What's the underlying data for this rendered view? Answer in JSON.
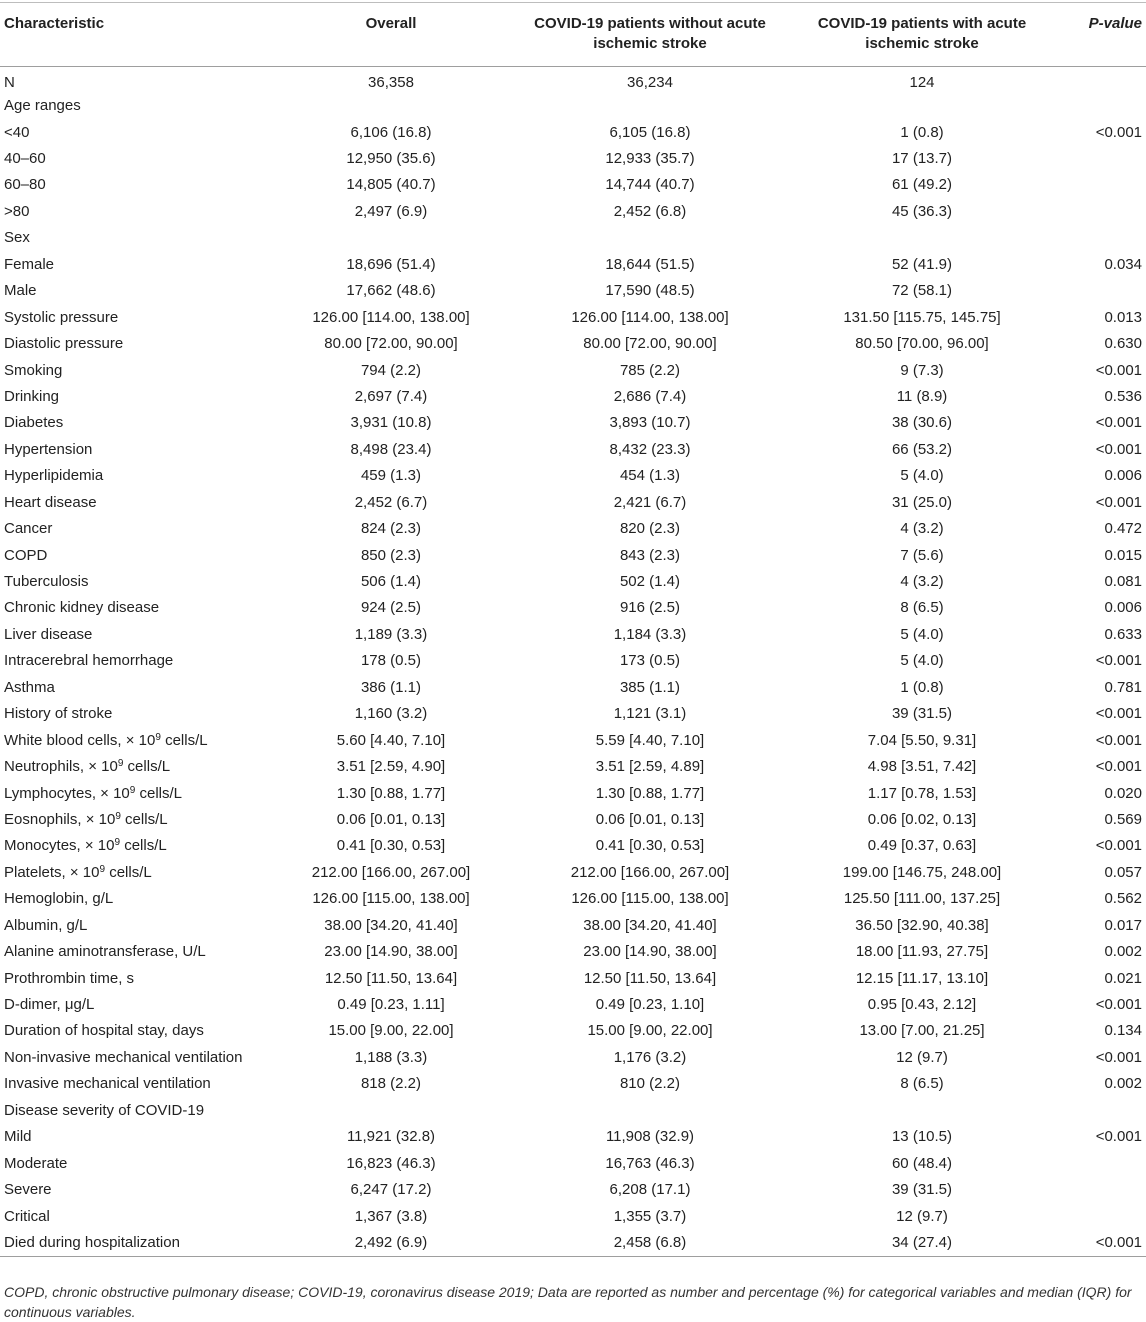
{
  "headers": {
    "characteristic": "Characteristic",
    "overall": "Overall",
    "without": "COVID-19 patients without acute ischemic stroke",
    "with": "COVID-19 patients with acute ischemic stroke",
    "pvalue": "P-value"
  },
  "rows": [
    {
      "label": "N",
      "overall": "36,358",
      "without": "36,234",
      "with": "124",
      "p": ""
    },
    {
      "label": "Age ranges",
      "overall": "",
      "without": "",
      "with": "",
      "p": ""
    },
    {
      "label": "<40",
      "overall": "6,106 (16.8)",
      "without": "6,105 (16.8)",
      "with": "1 (0.8)",
      "p": "<0.001"
    },
    {
      "label": "40–60",
      "overall": "12,950 (35.6)",
      "without": "12,933 (35.7)",
      "with": "17 (13.7)",
      "p": ""
    },
    {
      "label": "60–80",
      "overall": "14,805 (40.7)",
      "without": "14,744 (40.7)",
      "with": "61 (49.2)",
      "p": ""
    },
    {
      "label": ">80",
      "overall": "2,497 (6.9)",
      "without": "2,452 (6.8)",
      "with": "45 (36.3)",
      "p": ""
    },
    {
      "label": "Sex",
      "overall": "",
      "without": "",
      "with": "",
      "p": ""
    },
    {
      "label": "Female",
      "overall": "18,696 (51.4)",
      "without": "18,644 (51.5)",
      "with": "52 (41.9)",
      "p": "0.034"
    },
    {
      "label": "Male",
      "overall": "17,662 (48.6)",
      "without": "17,590 (48.5)",
      "with": "72 (58.1)",
      "p": ""
    },
    {
      "label": "Systolic pressure",
      "overall": "126.00 [114.00, 138.00]",
      "without": "126.00 [114.00, 138.00]",
      "with": "131.50 [115.75, 145.75]",
      "p": "0.013"
    },
    {
      "label": "Diastolic pressure",
      "overall": "80.00 [72.00, 90.00]",
      "without": "80.00 [72.00, 90.00]",
      "with": "80.50 [70.00, 96.00]",
      "p": "0.630"
    },
    {
      "label": "Smoking",
      "overall": "794 (2.2)",
      "without": "785 (2.2)",
      "with": "9 (7.3)",
      "p": "<0.001"
    },
    {
      "label": "Drinking",
      "overall": "2,697 (7.4)",
      "without": "2,686 (7.4)",
      "with": "11 (8.9)",
      "p": "0.536"
    },
    {
      "label": "Diabetes",
      "overall": "3,931 (10.8)",
      "without": "3,893 (10.7)",
      "with": "38 (30.6)",
      "p": "<0.001"
    },
    {
      "label": "Hypertension",
      "overall": "8,498 (23.4)",
      "without": "8,432 (23.3)",
      "with": "66 (53.2)",
      "p": "<0.001"
    },
    {
      "label": "Hyperlipidemia",
      "overall": "459 (1.3)",
      "without": "454 (1.3)",
      "with": "5 (4.0)",
      "p": "0.006"
    },
    {
      "label": "Heart disease",
      "overall": "2,452 (6.7)",
      "without": "2,421 (6.7)",
      "with": "31 (25.0)",
      "p": "<0.001"
    },
    {
      "label": "Cancer",
      "overall": "824 (2.3)",
      "without": "820 (2.3)",
      "with": "4 (3.2)",
      "p": "0.472"
    },
    {
      "label": "COPD",
      "overall": "850 (2.3)",
      "without": "843 (2.3)",
      "with": "7 (5.6)",
      "p": "0.015"
    },
    {
      "label": "Tuberculosis",
      "overall": "506 (1.4)",
      "without": "502 (1.4)",
      "with": "4 (3.2)",
      "p": "0.081"
    },
    {
      "label": "Chronic kidney disease",
      "overall": "924 (2.5)",
      "without": "916 (2.5)",
      "with": "8 (6.5)",
      "p": "0.006"
    },
    {
      "label": "Liver disease",
      "overall": "1,189 (3.3)",
      "without": "1,184 (3.3)",
      "with": "5 (4.0)",
      "p": "0.633"
    },
    {
      "label": "Intracerebral hemorrhage",
      "overall": "178 (0.5)",
      "without": "173 (0.5)",
      "with": "5 (4.0)",
      "p": "<0.001"
    },
    {
      "label": "Asthma",
      "overall": "386 (1.1)",
      "without": "385 (1.1)",
      "with": "1 (0.8)",
      "p": "0.781"
    },
    {
      "label": "History of stroke",
      "overall": "1,160 (3.2)",
      "without": "1,121 (3.1)",
      "with": "39 (31.5)",
      "p": "<0.001"
    },
    {
      "label_pre": "White blood cells, × 10",
      "label_sup": "9",
      "label_post": " cells/L",
      "overall": "5.60 [4.40, 7.10]",
      "without": "5.59 [4.40, 7.10]",
      "with": "7.04 [5.50, 9.31]",
      "p": "<0.001"
    },
    {
      "label_pre": "Neutrophils, × 10",
      "label_sup": "9",
      "label_post": " cells/L",
      "overall": "3.51 [2.59, 4.90]",
      "without": "3.51 [2.59, 4.89]",
      "with": "4.98 [3.51, 7.42]",
      "p": "<0.001"
    },
    {
      "label_pre": "Lymphocytes, × 10",
      "label_sup": "9",
      "label_post": " cells/L",
      "overall": "1.30 [0.88, 1.77]",
      "without": "1.30 [0.88, 1.77]",
      "with": "1.17 [0.78, 1.53]",
      "p": "0.020"
    },
    {
      "label_pre": "Eosnophils, × 10",
      "label_sup": "9",
      "label_post": " cells/L",
      "overall": "0.06 [0.01, 0.13]",
      "without": "0.06 [0.01, 0.13]",
      "with": "0.06 [0.02, 0.13]",
      "p": "0.569"
    },
    {
      "label_pre": "Monocytes, × 10",
      "label_sup": "9",
      "label_post": " cells/L",
      "overall": "0.41 [0.30, 0.53]",
      "without": "0.41 [0.30, 0.53]",
      "with": "0.49 [0.37, 0.63]",
      "p": "<0.001"
    },
    {
      "label_pre": "Platelets, × 10",
      "label_sup": "9",
      "label_post": " cells/L",
      "overall": "212.00 [166.00, 267.00]",
      "without": "212.00 [166.00, 267.00]",
      "with": "199.00 [146.75, 248.00]",
      "p": "0.057"
    },
    {
      "label": "Hemoglobin, g/L",
      "overall": "126.00 [115.00, 138.00]",
      "without": "126.00 [115.00, 138.00]",
      "with": "125.50 [111.00, 137.25]",
      "p": "0.562"
    },
    {
      "label": "Albumin, g/L",
      "overall": "38.00 [34.20, 41.40]",
      "without": "38.00 [34.20, 41.40]",
      "with": "36.50 [32.90, 40.38]",
      "p": "0.017"
    },
    {
      "label": "Alanine aminotransferase, U/L",
      "overall": "23.00 [14.90, 38.00]",
      "without": "23.00 [14.90, 38.00]",
      "with": "18.00 [11.93, 27.75]",
      "p": "0.002"
    },
    {
      "label": "Prothrombin time, s",
      "overall": "12.50 [11.50, 13.64]",
      "without": "12.50 [11.50, 13.64]",
      "with": "12.15 [11.17, 13.10]",
      "p": "0.021"
    },
    {
      "label": "D-dimer, μg/L",
      "overall": "0.49 [0.23, 1.11]",
      "without": "0.49 [0.23, 1.10]",
      "with": "0.95 [0.43, 2.12]",
      "p": "<0.001"
    },
    {
      "label": "Duration of hospital stay, days",
      "overall": "15.00 [9.00, 22.00]",
      "without": "15.00 [9.00, 22.00]",
      "with": "13.00 [7.00, 21.25]",
      "p": "0.134"
    },
    {
      "label": "Non-invasive mechanical ventilation",
      "overall": "1,188 (3.3)",
      "without": "1,176 (3.2)",
      "with": "12 (9.7)",
      "p": "<0.001"
    },
    {
      "label": "Invasive mechanical ventilation",
      "overall": "818 (2.2)",
      "without": "810 (2.2)",
      "with": "8 (6.5)",
      "p": "0.002"
    },
    {
      "label": "Disease severity of COVID-19",
      "overall": "",
      "without": "",
      "with": "",
      "p": ""
    },
    {
      "label": "Mild",
      "overall": "11,921 (32.8)",
      "without": "11,908 (32.9)",
      "with": "13 (10.5)",
      "p": "<0.001"
    },
    {
      "label": "Moderate",
      "overall": "16,823 (46.3)",
      "without": "16,763 (46.3)",
      "with": "60 (48.4)",
      "p": ""
    },
    {
      "label": "Severe",
      "overall": "6,247 (17.2)",
      "without": "6,208 (17.1)",
      "with": "39 (31.5)",
      "p": ""
    },
    {
      "label": "Critical",
      "overall": "1,367 (3.8)",
      "without": "1,355 (3.7)",
      "with": "12 (9.7)",
      "p": ""
    },
    {
      "label": "Died during hospitalization",
      "overall": "2,492 (6.9)",
      "without": "2,458 (6.8)",
      "with": "34 (27.4)",
      "p": "<0.001"
    }
  ],
  "footnote": "COPD, chronic obstructive pulmonary disease; COVID-19, coronavirus disease 2019; Data are reported as number and percentage (%) for categorical variables and median (IQR) for continuous variables."
}
